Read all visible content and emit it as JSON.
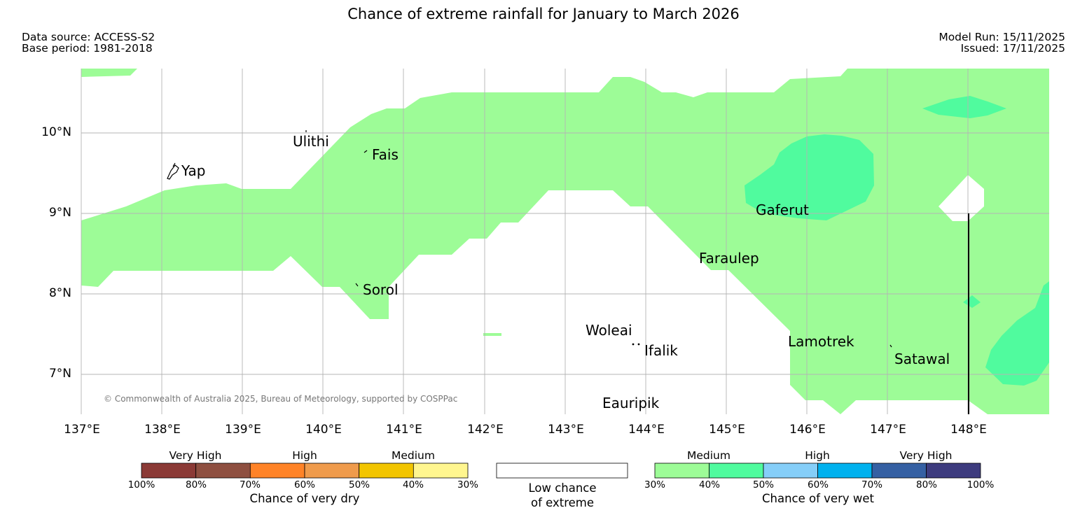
{
  "header": {
    "title": "Chance of extreme rainfall for January to March 2026",
    "data_source": "Data source: ACCESS-S2",
    "base_period": "Base period: 1981-2018",
    "model_run": "Model Run: 15/11/2025",
    "issued": "Issued: 17/11/2025"
  },
  "map": {
    "lat_labels": [
      "10°N",
      "9°N",
      "8°N",
      "7°N"
    ],
    "lon_labels": [
      "137°E",
      "138°E",
      "139°E",
      "140°E",
      "141°E",
      "142°E",
      "143°E",
      "144°E",
      "145°E",
      "146°E",
      "147°E",
      "148°E"
    ],
    "places": [
      "Yap",
      "Ulithi",
      "Fais",
      "Gaferut",
      "Faraulep",
      "Sorol",
      "Woleai",
      "Ifalik",
      "Lamotrek",
      "Satawal",
      "Eauripik"
    ],
    "copyright": "© Commonwealth of Australia 2025, Bureau of Meteorology, supported by COSPPac"
  },
  "legend": {
    "dry": {
      "categories": [
        "Very High",
        "High",
        "Medium"
      ],
      "ticks": [
        "100%",
        "80%",
        "70%",
        "60%",
        "50%",
        "40%",
        "30%"
      ],
      "colors": [
        "#8b3a36",
        "#8e4f40",
        "#ff8327",
        "#ef9b4c",
        "#f2c500",
        "#fff68f"
      ],
      "caption": "Chance of very dry"
    },
    "neutral": {
      "caption_line1": "Low chance",
      "caption_line2": "of extreme"
    },
    "wet": {
      "categories": [
        "Medium",
        "High",
        "Very High"
      ],
      "ticks": [
        "30%",
        "40%",
        "50%",
        "60%",
        "70%",
        "80%",
        "100%"
      ],
      "colors": [
        "#9dfc97",
        "#50fb9e",
        "#85cef8",
        "#00b1ee",
        "#3560a3",
        "#3d3b7e"
      ],
      "caption": "Chance of very wet"
    }
  },
  "colors": {
    "medium_wet": "#9dfc97",
    "high_wet": "#50fb9e",
    "grid": "#b4b4b4"
  }
}
